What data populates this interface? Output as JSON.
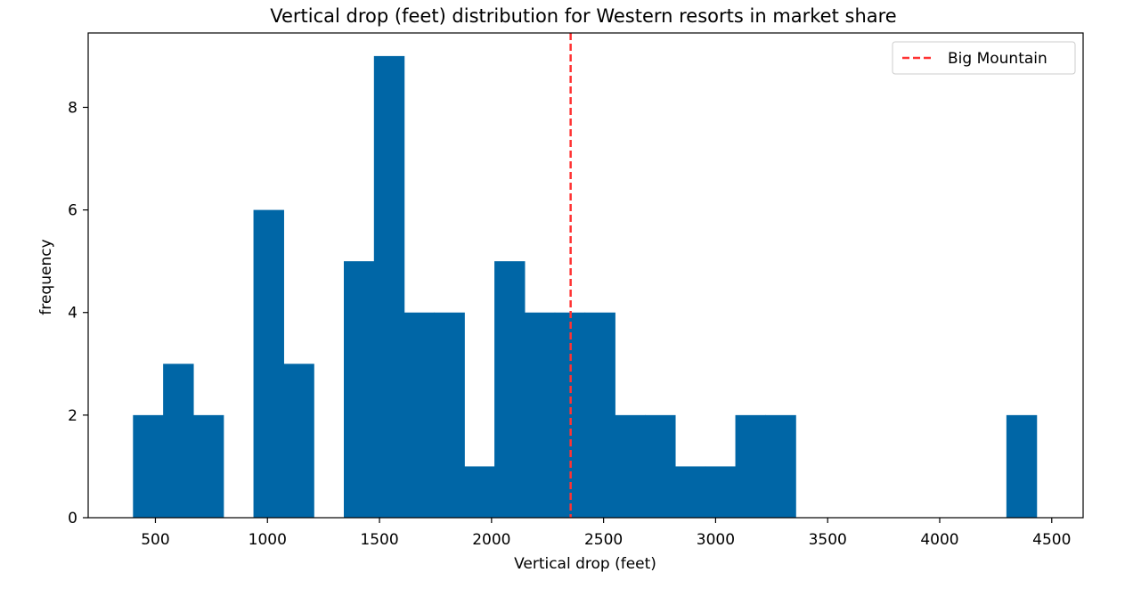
{
  "chart_data": {
    "type": "bar",
    "title": "Vertical drop (feet) distribution for Western resorts in market share",
    "xlabel": "Vertical drop (feet)",
    "ylabel": "frequency",
    "xlim": [
      200,
      4640
    ],
    "ylim": [
      0,
      9.45
    ],
    "bin_edges": [
      400,
      534.4,
      668.8,
      803.2,
      937.6,
      1072,
      1206.4,
      1340.8,
      1475.2,
      1609.6,
      1744,
      1878.4,
      2012.8,
      2147.2,
      2281.6,
      2416,
      2550.4,
      2684.8,
      2819.2,
      2953.6,
      3088,
      3222.4,
      3356.8,
      3491.2,
      3625.6,
      3760,
      3894.4,
      4028.8,
      4163.2,
      4297.6,
      4432
    ],
    "counts": [
      2,
      3,
      2,
      0,
      6,
      3,
      0,
      5,
      9,
      4,
      4,
      1,
      5,
      4,
      4,
      4,
      2,
      2,
      1,
      1,
      2,
      2,
      0,
      0,
      0,
      0,
      0,
      0,
      0,
      2
    ],
    "xticks": [
      500,
      1000,
      1500,
      2000,
      2500,
      3000,
      3500,
      4000,
      4500
    ],
    "yticks": [
      0,
      2,
      4,
      6,
      8
    ],
    "bar_color": "#0066a6",
    "reference_line": {
      "label": "Big Mountain",
      "x": 2353,
      "color": "#ff3333",
      "style": "dashed"
    },
    "legend_position": "top-right",
    "grid": false
  }
}
